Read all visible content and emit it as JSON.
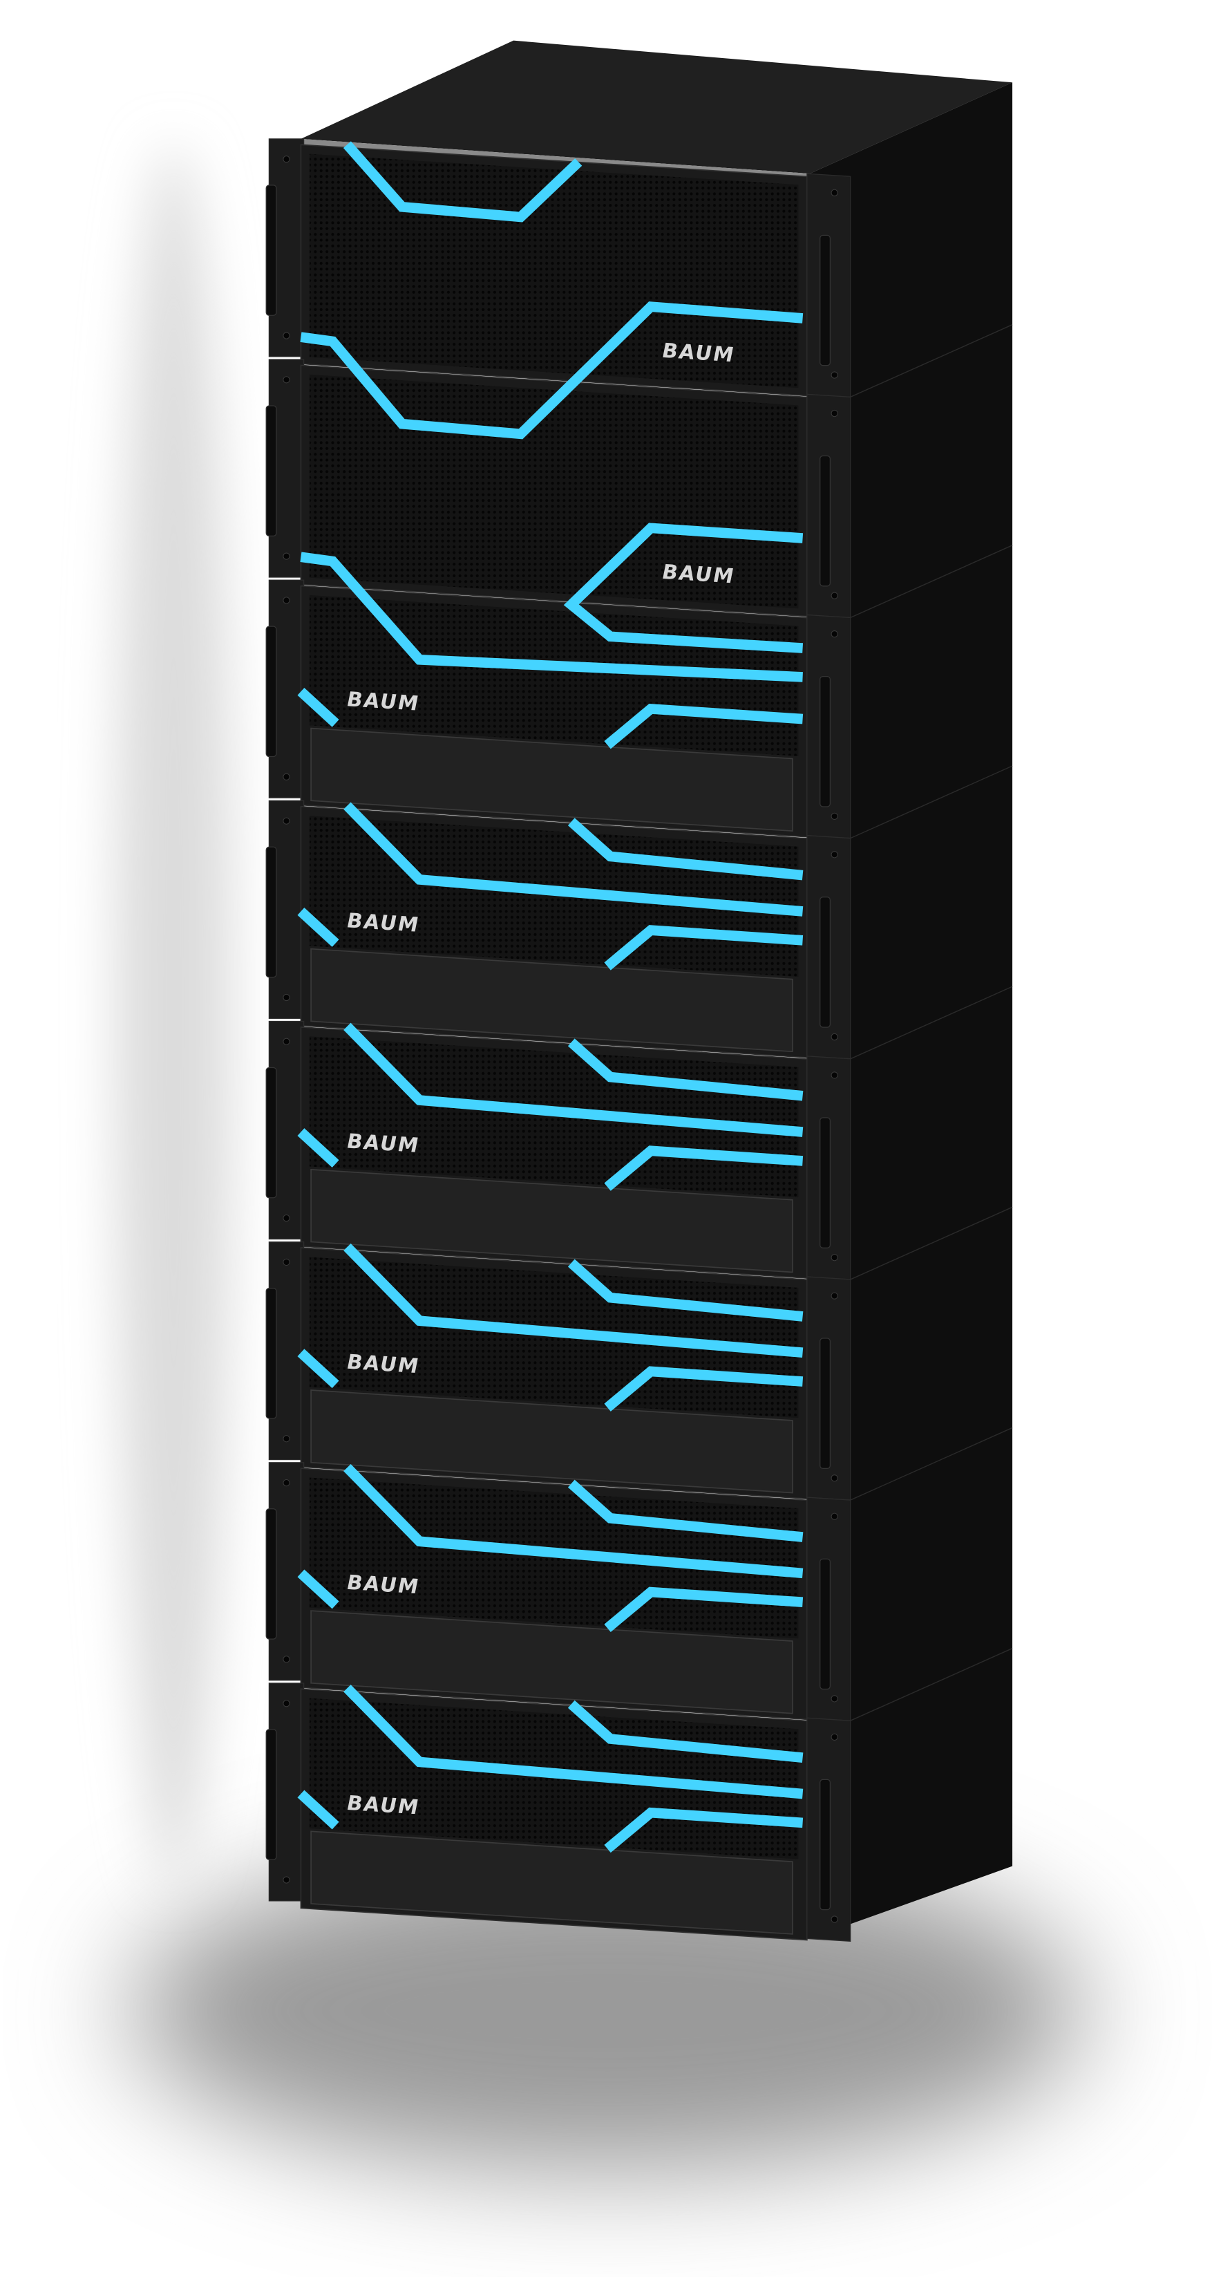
{
  "product": {
    "brand_logo_text": "BAUM",
    "unit_count": 8,
    "units_with_lower_bay": 6
  },
  "colors": {
    "background": "#ffffff",
    "chassis": "#1a1a1a",
    "grille": "#111111",
    "side_panel": "#0e0e0e",
    "top_panel": "#202020",
    "accent_stripe": "#45d4ff",
    "logo": "#d8d8d8"
  }
}
